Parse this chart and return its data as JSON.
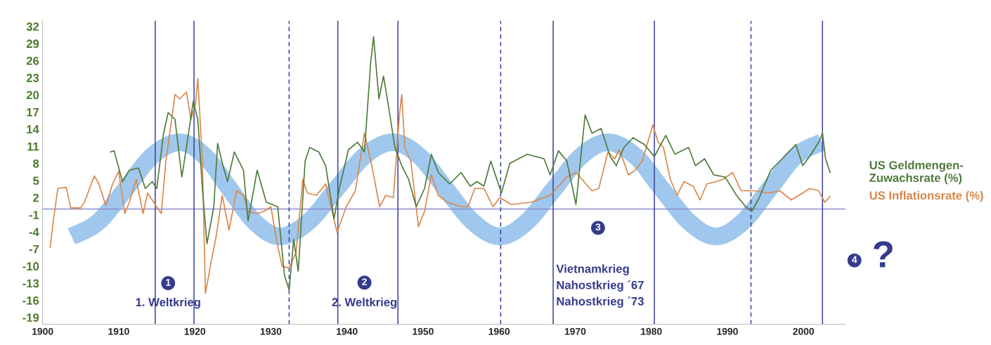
{
  "chart_data": {
    "type": "line",
    "xlim": [
      1900,
      2005.5
    ],
    "xticks": [
      1900,
      1910,
      1920,
      1930,
      1940,
      1950,
      1960,
      1970,
      1980,
      1990,
      2000
    ],
    "ylim": [
      -20.2,
      33
    ],
    "yticks": [
      -19,
      -16,
      -13,
      -10,
      -7,
      -4,
      -1,
      2,
      5,
      8,
      11,
      14,
      17,
      20,
      23,
      26,
      29,
      32
    ],
    "grid": false,
    "legend": false,
    "marker": "none",
    "line_style": "solid",
    "series": [
      {
        "color": "#a0c8ee",
        "x": [
          1903.8,
          1907.3,
          1910.9,
          1914.4,
          1918.0,
          1921.3,
          1924.6,
          1927.9,
          1931.2,
          1934.9,
          1938.6,
          1942.3,
          1946.0,
          1949.5,
          1953.0,
          1956.6,
          1960.1,
          1963.6,
          1967.2,
          1970.8,
          1974.3,
          1977.9,
          1981.4,
          1985.0,
          1988.5,
          1992.0,
          1995.5,
          1999.0,
          2002.4
        ],
        "values": [
          -4.8,
          -2.3,
          3.5,
          9.3,
          11.7,
          9.3,
          3.5,
          -2.3,
          -4.8,
          -2.3,
          3.5,
          9.3,
          11.7,
          9.3,
          3.5,
          -2.3,
          -4.8,
          -2.3,
          3.5,
          9.3,
          11.7,
          9.3,
          3.5,
          -2.3,
          -4.8,
          -2.3,
          3.5,
          9.3,
          11.7
        ]
      },
      {
        "name": "US Inflationsrate (%)",
        "color": "#d9874a",
        "x": [
          1901.0,
          1901.4,
          1902.0,
          1903.1,
          1903.7,
          1905.0,
          1905.5,
          1906.4,
          1906.8,
          1907.4,
          1908.3,
          1909.2,
          1910.0,
          1910.8,
          1911.4,
          1912.3,
          1913.2,
          1913.8,
          1914.4,
          1915.6,
          1916.2,
          1916.8,
          1917.4,
          1918.0,
          1918.9,
          1919.5,
          1920.1,
          1920.4,
          1921.0,
          1921.4,
          1922.2,
          1922.8,
          1923.6,
          1924.5,
          1925.5,
          1926.4,
          1927.0,
          1928.2,
          1929.1,
          1930.0,
          1930.9,
          1931.5,
          1932.4,
          1933.3,
          1934.2,
          1934.8,
          1936.0,
          1937.2,
          1938.7,
          1939.9,
          1941.1,
          1942.3,
          1943.2,
          1944.3,
          1945.1,
          1946.1,
          1946.9,
          1947.2,
          1947.6,
          1948.4,
          1949.4,
          1950.2,
          1951.1,
          1952.0,
          1953.2,
          1955.0,
          1955.9,
          1956.8,
          1958.0,
          1959.2,
          1960.1,
          1961.6,
          1964.3,
          1966.7,
          1968.9,
          1970.1,
          1972.2,
          1973.1,
          1974.3,
          1975.2,
          1975.8,
          1977.0,
          1977.9,
          1978.8,
          1980.2,
          1980.9,
          1981.6,
          1982.5,
          1983.4,
          1984.3,
          1985.5,
          1986.4,
          1987.3,
          1988.5,
          1989.4,
          1990.7,
          1991.8,
          1993.6,
          1995.4,
          1996.9,
          1998.4,
          1999.9,
          2000.8,
          2002.0,
          2002.8,
          2003.5
        ],
        "values": [
          -6.7,
          -2.1,
          3.6,
          3.8,
          0.2,
          0.2,
          1.2,
          4.4,
          5.8,
          4.4,
          0.6,
          4.4,
          6.6,
          -0.8,
          1.2,
          5.2,
          -0.8,
          2.8,
          1.6,
          -0.8,
          8.4,
          14.1,
          20.1,
          19.3,
          20.5,
          15.7,
          18.5,
          22.9,
          8.4,
          -14.8,
          -8.9,
          -4.9,
          2.4,
          -3.7,
          3.2,
          2.4,
          -0.4,
          -0.8,
          -0.4,
          0.4,
          -6.5,
          -10.1,
          -10.3,
          -7.7,
          5.2,
          2.8,
          2.4,
          4.4,
          -4.1,
          0.4,
          3.2,
          13.3,
          8.0,
          0.4,
          2.4,
          2.0,
          16.5,
          20.1,
          10.8,
          8.4,
          -3.1,
          -0.4,
          6.0,
          2.4,
          1.2,
          0.4,
          0.4,
          3.6,
          3.6,
          0.4,
          2.0,
          0.8,
          1.2,
          2.4,
          5.6,
          6.4,
          3.2,
          3.6,
          10.0,
          8.8,
          10.4,
          6.0,
          6.8,
          8.4,
          14.7,
          11.7,
          10.8,
          5.2,
          2.4,
          4.8,
          4.0,
          1.6,
          4.4,
          4.8,
          5.2,
          6.4,
          3.2,
          3.2,
          2.8,
          3.2,
          1.6,
          2.8,
          3.6,
          3.2,
          1.2,
          2.2
        ]
      },
      {
        "name": "US Geldmengen-\nZuwachsrate (%)",
        "color": "#4e7a3a",
        "x": [
          1908.9,
          1909.4,
          1910.5,
          1911.4,
          1912.6,
          1913.5,
          1914.4,
          1915.0,
          1915.9,
          1916.5,
          1917.4,
          1918.3,
          1918.9,
          1919.8,
          1920.4,
          1921.0,
          1921.6,
          1922.5,
          1923.0,
          1923.7,
          1924.3,
          1925.2,
          1926.4,
          1927.0,
          1928.2,
          1929.4,
          1930.9,
          1931.8,
          1932.4,
          1933.0,
          1933.6,
          1934.5,
          1935.1,
          1936.3,
          1937.2,
          1938.3,
          1939.0,
          1940.2,
          1941.4,
          1942.3,
          1943.1,
          1943.5,
          1944.2,
          1944.8,
          1945.4,
          1946.3,
          1947.2,
          1948.1,
          1949.1,
          1950.2,
          1951.1,
          1952.0,
          1953.5,
          1955.0,
          1956.2,
          1957.1,
          1958.0,
          1958.9,
          1960.3,
          1961.4,
          1963.7,
          1965.9,
          1966.7,
          1967.8,
          1968.9,
          1970.1,
          1971.3,
          1972.2,
          1973.4,
          1974.6,
          1975.4,
          1976.4,
          1977.6,
          1979.1,
          1980.4,
          1981.9,
          1983.1,
          1984.9,
          1985.8,
          1987.0,
          1988.2,
          1989.7,
          1991.2,
          1992.4,
          1993.2,
          1994.2,
          1995.7,
          1997.5,
          1999.0,
          1999.9,
          2000.8,
          2002.0,
          2002.5,
          2002.9,
          2003.5
        ],
        "values": [
          10.0,
          10.2,
          4.8,
          6.8,
          7.2,
          3.6,
          4.8,
          3.6,
          13.3,
          16.9,
          15.7,
          5.6,
          10.8,
          18.9,
          15.7,
          3.6,
          -6.1,
          0.4,
          11.5,
          7.6,
          4.8,
          10.0,
          6.8,
          -2.1,
          6.8,
          1.2,
          0.4,
          -11.7,
          -14.2,
          -5.3,
          -10.9,
          8.4,
          10.8,
          10.0,
          7.6,
          -1.7,
          3.6,
          10.4,
          11.7,
          10.0,
          25.4,
          30.2,
          19.3,
          23.3,
          18.5,
          10.8,
          7.6,
          5.2,
          0.4,
          3.6,
          9.6,
          6.4,
          4.4,
          6.4,
          4.0,
          4.8,
          4.0,
          8.4,
          2.8,
          8.0,
          9.6,
          8.8,
          6.0,
          10.2,
          8.4,
          0.8,
          16.5,
          13.3,
          14.1,
          9.2,
          7.6,
          10.8,
          12.5,
          11.3,
          9.2,
          12.9,
          9.6,
          10.8,
          7.6,
          8.8,
          6.0,
          5.6,
          2.4,
          0.4,
          -0.4,
          2.0,
          6.8,
          9.2,
          11.3,
          7.6,
          9.2,
          11.7,
          13.3,
          8.8,
          6.4
        ]
      }
    ],
    "ref_lines": [
      {
        "axis": "y",
        "value": 0,
        "color": "#8a8ad0",
        "line_style": "solid"
      },
      {
        "axis": "x",
        "value": 1914.8,
        "color": "#3a3f9a",
        "line_style": "solid"
      },
      {
        "axis": "x",
        "value": 1919.9,
        "color": "#3a3f9a",
        "line_style": "solid"
      },
      {
        "axis": "x",
        "value": 1932.4,
        "color": "#3a3f9a",
        "line_style": "dashed"
      },
      {
        "axis": "x",
        "value": 1938.8,
        "color": "#3a3f9a",
        "line_style": "solid"
      },
      {
        "axis": "x",
        "value": 1946.7,
        "color": "#3a3f9a",
        "line_style": "solid"
      },
      {
        "axis": "x",
        "value": 1960.2,
        "color": "#3a3f9a",
        "line_style": "dashed"
      },
      {
        "axis": "x",
        "value": 1967.1,
        "color": "#3a3f9a",
        "line_style": "solid"
      },
      {
        "axis": "x",
        "value": 1980.4,
        "color": "#3a3f9a",
        "line_style": "solid"
      },
      {
        "axis": "x",
        "value": 1993.1,
        "color": "#3a3f9a",
        "line_style": "dashed"
      },
      {
        "axis": "x",
        "value": 2002.5,
        "color": "#3a3f9a",
        "line_style": "solid"
      }
    ],
    "annotations": [
      "1",
      "1. Weltkrieg",
      "2",
      "2. Weltkrieg",
      "3",
      "Vietnamkrieg\nNahostkrieg ´67\nNahostkrieg ´73",
      "4",
      "?"
    ]
  }
}
